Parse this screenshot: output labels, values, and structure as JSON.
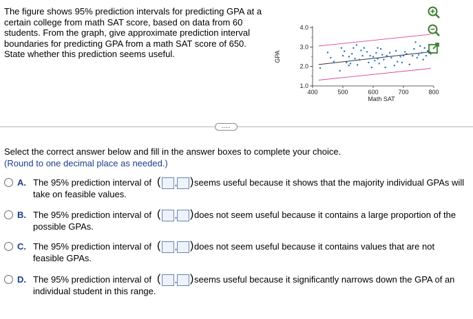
{
  "question": {
    "text": "The figure shows 95% prediction intervals for predicting GPA at a certain college from math SAT score, based on data from 60 students. From the graph, give approximate prediction interval boundaries for predicting GPA from a math SAT score of 650. State whether this prediction seems useful."
  },
  "chart_data": {
    "type": "scatter",
    "xlabel": "Math SAT",
    "ylabel": "GPA",
    "x_ticks": [
      "400",
      "500",
      "600",
      "700",
      "800"
    ],
    "y_ticks": [
      "1.0",
      "2.0",
      "3.0",
      "4.0"
    ],
    "xlim": [
      400,
      800
    ],
    "ylim": [
      1.0,
      4.0
    ],
    "lines": [
      {
        "role": "upper-prediction-bound",
        "color": "#e0409a",
        "x": [
          420,
          790
        ],
        "y": [
          3.05,
          3.65
        ]
      },
      {
        "role": "regression-line",
        "color": "#333333",
        "x": [
          420,
          790
        ],
        "y": [
          2.1,
          2.75
        ]
      },
      {
        "role": "lower-prediction-bound",
        "color": "#e0409a",
        "x": [
          420,
          790
        ],
        "y": [
          1.3,
          1.9
        ]
      }
    ],
    "points": [
      [
        425,
        1.92
      ],
      [
        450,
        2.72
      ],
      [
        470,
        2.25
      ],
      [
        490,
        1.78
      ],
      [
        495,
        2.95
      ],
      [
        500,
        2.55
      ],
      [
        505,
        2.78
      ],
      [
        512,
        2.2
      ],
      [
        520,
        2.05
      ],
      [
        525,
        2.15
      ],
      [
        530,
        2.65
      ],
      [
        535,
        2.95
      ],
      [
        540,
        2.4
      ],
      [
        545,
        3.1
      ],
      [
        555,
        2.35
      ],
      [
        560,
        2.82
      ],
      [
        565,
        2.55
      ],
      [
        570,
        2.95
      ],
      [
        580,
        2.75
      ],
      [
        585,
        2.2
      ],
      [
        590,
        2.55
      ],
      [
        595,
        1.95
      ],
      [
        600,
        2.5
      ],
      [
        605,
        2.3
      ],
      [
        610,
        2.7
      ],
      [
        615,
        2.4
      ],
      [
        620,
        2.15
      ],
      [
        625,
        2.9
      ],
      [
        630,
        2.6
      ],
      [
        635,
        2.35
      ],
      [
        640,
        1.95
      ],
      [
        645,
        2.55
      ],
      [
        655,
        2.7
      ],
      [
        660,
        2.45
      ],
      [
        670,
        2.05
      ],
      [
        675,
        2.8
      ],
      [
        680,
        2.25
      ],
      [
        690,
        2.5
      ],
      [
        700,
        2.55
      ],
      [
        705,
        2.75
      ],
      [
        710,
        2.65
      ],
      [
        720,
        2.1
      ],
      [
        730,
        2.55
      ],
      [
        735,
        2.9
      ],
      [
        740,
        3.25
      ],
      [
        750,
        2.6
      ],
      [
        755,
        3.05
      ],
      [
        760,
        2.7
      ],
      [
        765,
        2.35
      ],
      [
        770,
        2.95
      ],
      [
        775,
        2.55
      ],
      [
        780,
        2.8
      ],
      [
        785,
        3.1
      ],
      [
        790,
        2.65
      ],
      [
        460,
        2.45
      ],
      [
        548,
        2.08
      ],
      [
        615,
        2.95
      ],
      [
        695,
        2.2
      ],
      [
        745,
        2.45
      ],
      [
        520,
        2.5
      ]
    ]
  },
  "tools": {
    "icons": [
      "zoom-in-icon",
      "zoom-out-icon",
      "popout-icon"
    ],
    "accent": "#3a7d2e"
  },
  "expand": {
    "label": "....."
  },
  "instruction": "Select the correct answer below and fill in the answer boxes to complete your choice.",
  "note": "(Round to one decimal place as needed.)",
  "options": [
    {
      "letter": "A.",
      "prefix": "The 95% prediction interval of",
      "paren_open": "(",
      "comma": ",",
      "paren_close": ")",
      "suffix": "seems useful because it shows that the majority individual GPAs will",
      "continuation": "take on feasible values."
    },
    {
      "letter": "B.",
      "prefix": "The 95% prediction interval of",
      "paren_open": "(",
      "comma": ",",
      "paren_close": ")",
      "suffix": "does not seem useful because it contains a large proportion of the",
      "continuation": "possible GPAs."
    },
    {
      "letter": "C.",
      "prefix": "The 95% prediction interval of",
      "paren_open": "(",
      "comma": ",",
      "paren_close": ")",
      "suffix": "does not seem useful because it contains values that are not",
      "continuation": "feasible GPAs."
    },
    {
      "letter": "D.",
      "prefix": "The 95% prediction interval of",
      "paren_open": "(",
      "comma": ",",
      "paren_close": ")",
      "suffix": "seems useful because it significantly narrows down the GPA of an",
      "continuation": "individual student in this range."
    }
  ]
}
